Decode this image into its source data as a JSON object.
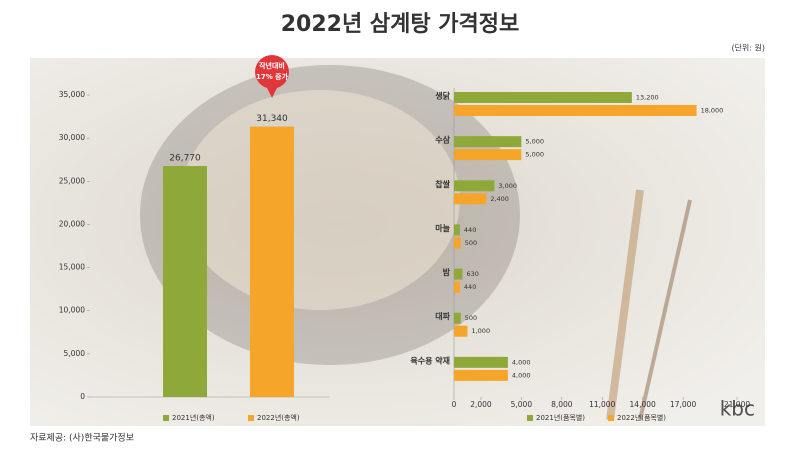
{
  "title": "2022년 삼계탕 가격정보",
  "unit_note": "(단위: 원)",
  "source": "자료제공: (사)한국물가정보",
  "watermark": "kbc",
  "chart_data": [
    {
      "type": "bar",
      "categories": [
        null
      ],
      "series": [
        {
          "name": "2021년(총액)",
          "color": "#8fa83a",
          "values": [
            26770
          ],
          "value_labels": [
            "26,770"
          ]
        },
        {
          "name": "2022년(총액)",
          "color": "#f5a52a",
          "values": [
            31340
          ],
          "value_labels": [
            "31,340"
          ]
        }
      ],
      "annotation": [
        "작년대비",
        "17% 증가"
      ],
      "ylim": [
        0,
        35000
      ],
      "yticks": [
        0,
        {
          "value": 5000,
          "label": "5,000"
        },
        {
          "value": 10000,
          "label": "10,000"
        },
        {
          "value": 15000,
          "label": "15,000"
        },
        {
          "value": 20000,
          "label": "20,000"
        },
        {
          "value": 25000,
          "label": "25,000"
        },
        {
          "value": 30000,
          "label": "30,000"
        },
        {
          "value": 35000,
          "label": "35,000"
        }
      ]
    },
    {
      "type": "barh",
      "categories": [
        "생닭",
        "수삼",
        "찹쌀",
        "마늘",
        "밤",
        "대파",
        "육수용 약재"
      ],
      "series": [
        {
          "name": "2021년(품목별)",
          "color": "#8fa83a",
          "values": [
            13200,
            5000,
            3000,
            440,
            630,
            500,
            4000
          ],
          "value_labels": [
            "13,200",
            "5,000",
            "3,000",
            "440",
            "630",
            "500",
            "4,000"
          ]
        },
        {
          "name": "2022년(품목별)",
          "color": "#f5a52a",
          "values": [
            18000,
            5000,
            2400,
            500,
            440,
            1000,
            4000
          ],
          "value_labels": [
            "18,000",
            "5,000",
            "2,400",
            "500",
            "440",
            "1,000",
            "4,000"
          ]
        }
      ],
      "xlim": [
        0,
        21000
      ],
      "xticks": [
        0,
        {
          "value": 2000,
          "label": "2,000"
        },
        {
          "value": 5000,
          "label": "5,000"
        },
        {
          "value": 8000,
          "label": "8,000"
        },
        {
          "value": 11000,
          "label": "11,000"
        },
        {
          "value": 14000,
          "label": "14,000"
        },
        {
          "value": 17000,
          "label": "17,000"
        },
        {
          "value": 21000,
          "label": "21,000"
        }
      ]
    }
  ]
}
